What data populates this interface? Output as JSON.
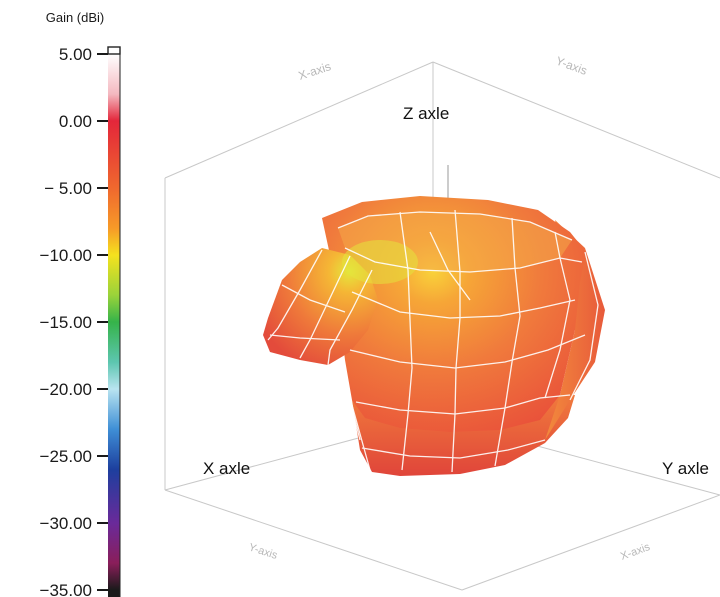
{
  "colorbar": {
    "title": "Gain (dBi)",
    "ticks": [
      {
        "value": 5,
        "label": "5.00"
      },
      {
        "value": 0,
        "label": "0.00"
      },
      {
        "value": -5,
        "label": "− 5.00"
      },
      {
        "value": -10,
        "label": "−10.00"
      },
      {
        "value": -15,
        "label": "−15.00"
      },
      {
        "value": -20,
        "label": "−20.00"
      },
      {
        "value": -25,
        "label": "−25.00"
      },
      {
        "value": -30,
        "label": "−30.00"
      },
      {
        "value": -35,
        "label": "−35.00"
      }
    ],
    "range": [
      -35,
      5
    ],
    "stops": [
      {
        "value": 5,
        "color": "#ffffff"
      },
      {
        "value": 2,
        "color": "#f4b8c0"
      },
      {
        "value": 0,
        "color": "#e3263a"
      },
      {
        "value": -5,
        "color": "#f0682e"
      },
      {
        "value": -8,
        "color": "#f79a28"
      },
      {
        "value": -10,
        "color": "#f5e21e"
      },
      {
        "value": -13,
        "color": "#9ad33a"
      },
      {
        "value": -15,
        "color": "#35b34a"
      },
      {
        "value": -18,
        "color": "#5dc6b0"
      },
      {
        "value": -20,
        "color": "#b9e4f0"
      },
      {
        "value": -23,
        "color": "#3f8fd6"
      },
      {
        "value": -26,
        "color": "#1d3f9e"
      },
      {
        "value": -30,
        "color": "#6a2a9a"
      },
      {
        "value": -33,
        "color": "#8a1e5a"
      },
      {
        "value": -35,
        "color": "#1a1a1a"
      }
    ]
  },
  "axes": {
    "z_label": "Z axle",
    "x_label": "X axle",
    "y_label": "Y axle",
    "back_x_label": "X-axis",
    "back_y_label": "Y-axis",
    "front_x_label": "Y-axis",
    "front_y_label": "X-axis"
  },
  "colors": {
    "pattern_base": "#f06a3a",
    "pattern_hot": "#f9c23a",
    "pattern_peak": "#d8e23a",
    "mesh": "#ffffff",
    "box": "#c8c8c8"
  }
}
